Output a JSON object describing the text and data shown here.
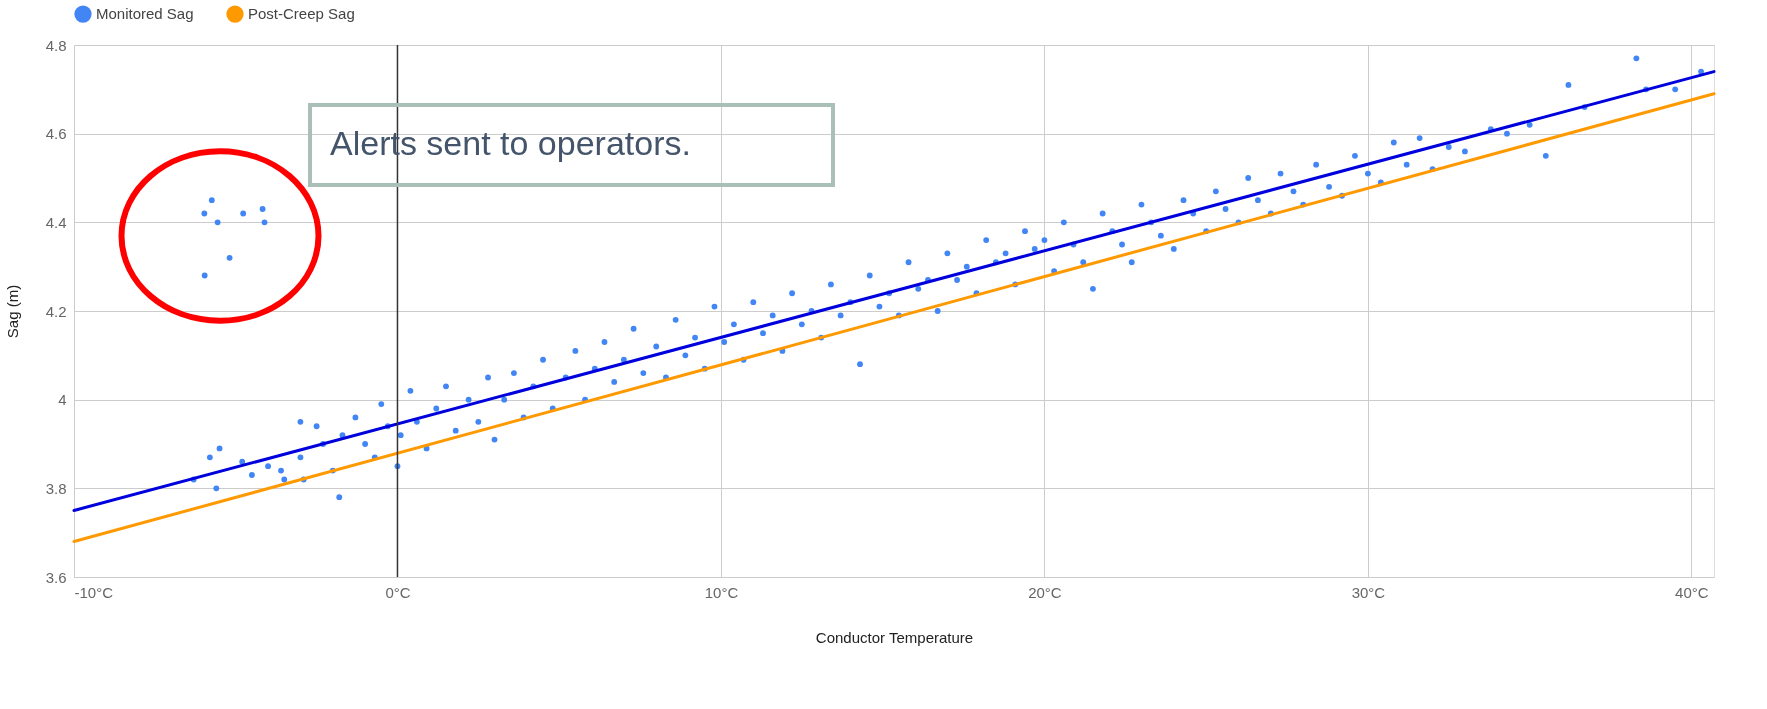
{
  "chart_data": {
    "type": "scatter",
    "xlabel": "Conductor Temperature",
    "ylabel": "Sag (m)",
    "xlim": [
      -10,
      40.7
    ],
    "ylim": [
      3.6,
      4.8
    ],
    "xticks": [
      {
        "value": -10,
        "label": "-10°C"
      },
      {
        "value": 0,
        "label": "0°C"
      },
      {
        "value": 10,
        "label": "10°C"
      },
      {
        "value": 20,
        "label": "20°C"
      },
      {
        "value": 30,
        "label": "30°C"
      },
      {
        "value": 40,
        "label": "40°C"
      }
    ],
    "yticks": [
      3.6,
      3.8,
      4,
      4.2,
      4.4,
      4.6,
      4.8
    ],
    "grid": true,
    "legend": "top",
    "ref_lines": [
      {
        "axis": "x",
        "value": 0,
        "color": "#333333"
      }
    ],
    "annotations": [
      "Alerts sent to operators."
    ],
    "series": [
      {
        "name": "Monitored Sag",
        "marker": "circle",
        "color": "#4285f4",
        "x": [
          -5.97,
          -5.74,
          -5.56,
          -4.77,
          -4.17,
          -4.11,
          -5.19,
          -5.96,
          -6.3,
          -5.8,
          -5.6,
          -5.5,
          -4.8,
          -4.5,
          -4.0,
          -3.6,
          -3.5,
          -3.0,
          -3.0,
          -2.9,
          -2.5,
          -2.3,
          -2.0,
          -1.8,
          -1.7,
          -1.3,
          -1.0,
          -0.7,
          -0.5,
          -0.3,
          0.0,
          0.1,
          0.4,
          0.6,
          0.9,
          1.2,
          1.5,
          1.8,
          2.2,
          2.5,
          2.8,
          3.0,
          3.3,
          3.6,
          3.9,
          4.2,
          4.5,
          4.8,
          5.2,
          5.5,
          5.8,
          6.1,
          6.4,
          6.7,
          7.0,
          7.3,
          7.6,
          8.0,
          8.3,
          8.6,
          8.9,
          9.2,
          9.5,
          9.8,
          10.1,
          10.4,
          10.7,
          11.0,
          11.3,
          11.6,
          11.9,
          12.2,
          12.5,
          12.8,
          13.1,
          13.4,
          13.7,
          14.0,
          14.3,
          14.6,
          14.9,
          15.2,
          15.5,
          15.8,
          16.1,
          16.4,
          16.7,
          17.0,
          17.3,
          17.6,
          17.9,
          18.2,
          18.5,
          18.8,
          19.1,
          19.4,
          19.7,
          20.0,
          20.3,
          20.6,
          20.9,
          21.2,
          21.5,
          21.8,
          22.1,
          22.4,
          22.7,
          23.0,
          23.3,
          23.6,
          24.0,
          24.3,
          24.6,
          25.0,
          25.3,
          25.6,
          26.0,
          26.3,
          26.6,
          27.0,
          27.3,
          27.7,
          28.0,
          28.4,
          28.8,
          29.2,
          29.6,
          30.0,
          30.4,
          30.8,
          31.2,
          31.6,
          32.0,
          32.5,
          33.0,
          33.8,
          34.3,
          35.0,
          35.5,
          36.2,
          36.7,
          38.3,
          38.6,
          39.5,
          40.3
        ],
        "values": [
          4.42,
          4.45,
          4.4,
          4.42,
          4.43,
          4.4,
          4.32,
          4.28,
          3.82,
          3.87,
          3.8,
          3.89,
          3.86,
          3.83,
          3.85,
          3.84,
          3.82,
          3.95,
          3.87,
          3.82,
          3.94,
          3.9,
          3.84,
          3.78,
          3.92,
          3.96,
          3.9,
          3.87,
          3.99,
          3.94,
          3.85,
          3.92,
          4.02,
          3.95,
          3.89,
          3.98,
          4.03,
          3.93,
          4.0,
          3.95,
          4.05,
          3.91,
          4.0,
          4.06,
          3.96,
          4.03,
          4.09,
          3.98,
          4.05,
          4.11,
          4.0,
          4.07,
          4.13,
          4.04,
          4.09,
          4.16,
          4.06,
          4.12,
          4.05,
          4.18,
          4.1,
          4.14,
          4.07,
          4.21,
          4.13,
          4.17,
          4.09,
          4.22,
          4.15,
          4.19,
          4.11,
          4.24,
          4.17,
          4.2,
          4.14,
          4.26,
          4.19,
          4.22,
          4.08,
          4.28,
          4.21,
          4.24,
          4.19,
          4.31,
          4.25,
          4.27,
          4.2,
          4.33,
          4.27,
          4.3,
          4.24,
          4.36,
          4.31,
          4.33,
          4.26,
          4.38,
          4.34,
          4.36,
          4.29,
          4.4,
          4.35,
          4.31,
          4.25,
          4.42,
          4.38,
          4.35,
          4.31,
          4.44,
          4.4,
          4.37,
          4.34,
          4.45,
          4.42,
          4.38,
          4.47,
          4.43,
          4.4,
          4.5,
          4.45,
          4.42,
          4.51,
          4.47,
          4.44,
          4.53,
          4.48,
          4.46,
          4.55,
          4.51,
          4.49,
          4.58,
          4.53,
          4.59,
          4.52,
          4.57,
          4.56,
          4.61,
          4.6,
          4.62,
          4.55,
          4.71,
          4.66,
          4.77,
          4.7,
          4.7,
          4.74
        ]
      },
      {
        "type": "line",
        "color": "#0000dd",
        "x": [
          -10,
          40.7
        ],
        "values": [
          3.75,
          4.74
        ]
      },
      {
        "name": "Post-Creep Sag",
        "type": "line",
        "color": "#ff9900",
        "x": [
          -10,
          40.7
        ],
        "values": [
          3.68,
          4.69
        ]
      }
    ]
  }
}
